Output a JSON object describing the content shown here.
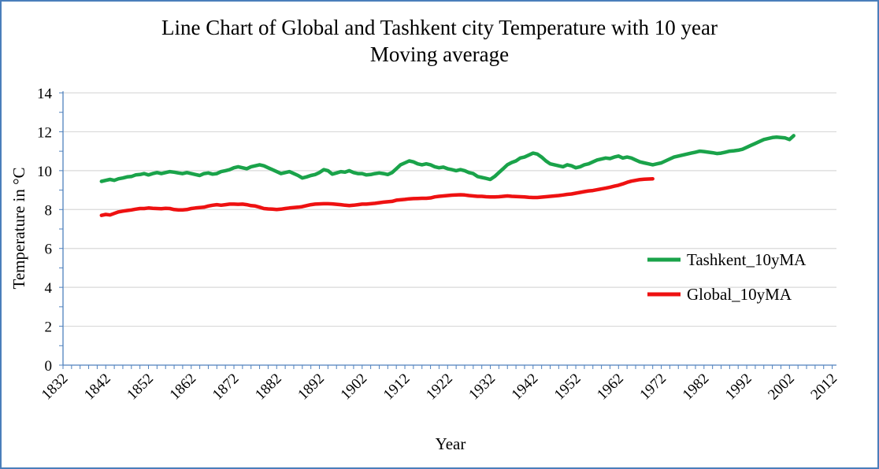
{
  "chart_data": {
    "type": "line",
    "title_line1": "Line Chart of Global and Tashkent city Temperature with 10 year",
    "title_line2": "Moving average",
    "xlabel": "Year",
    "ylabel": "Temperature in °C",
    "xlim": [
      1832,
      2013
    ],
    "ylim": [
      0,
      14
    ],
    "x_ticks": [
      "1832",
      "1842",
      "1852",
      "1862",
      "1872",
      "1882",
      "1892",
      "1902",
      "1912",
      "1922",
      "1932",
      "1942",
      "1952",
      "1962",
      "1972",
      "1982",
      "1992",
      "2002",
      "2012"
    ],
    "y_ticks": [
      "0",
      "2",
      "4",
      "6",
      "8",
      "10",
      "12",
      "14"
    ],
    "grid": "horizontal",
    "legend_position": "right",
    "series": [
      {
        "name": "Tashkent_10yMA",
        "color": "#1aa34a",
        "points": [
          [
            1841,
            9.45
          ],
          [
            1842,
            9.5
          ],
          [
            1843,
            9.55
          ],
          [
            1844,
            9.5
          ],
          [
            1845,
            9.58
          ],
          [
            1846,
            9.62
          ],
          [
            1847,
            9.68
          ],
          [
            1848,
            9.7
          ],
          [
            1849,
            9.78
          ],
          [
            1850,
            9.8
          ],
          [
            1851,
            9.85
          ],
          [
            1852,
            9.78
          ],
          [
            1853,
            9.85
          ],
          [
            1854,
            9.9
          ],
          [
            1855,
            9.85
          ],
          [
            1856,
            9.9
          ],
          [
            1857,
            9.95
          ],
          [
            1858,
            9.92
          ],
          [
            1859,
            9.88
          ],
          [
            1860,
            9.85
          ],
          [
            1861,
            9.9
          ],
          [
            1862,
            9.85
          ],
          [
            1863,
            9.8
          ],
          [
            1864,
            9.75
          ],
          [
            1865,
            9.85
          ],
          [
            1866,
            9.88
          ],
          [
            1867,
            9.82
          ],
          [
            1868,
            9.85
          ],
          [
            1869,
            9.95
          ],
          [
            1870,
            10.0
          ],
          [
            1871,
            10.05
          ],
          [
            1872,
            10.15
          ],
          [
            1873,
            10.2
          ],
          [
            1874,
            10.15
          ],
          [
            1875,
            10.1
          ],
          [
            1876,
            10.2
          ],
          [
            1877,
            10.25
          ],
          [
            1878,
            10.3
          ],
          [
            1879,
            10.25
          ],
          [
            1880,
            10.15
          ],
          [
            1881,
            10.05
          ],
          [
            1882,
            9.95
          ],
          [
            1883,
            9.85
          ],
          [
            1884,
            9.9
          ],
          [
            1885,
            9.95
          ],
          [
            1886,
            9.85
          ],
          [
            1887,
            9.75
          ],
          [
            1888,
            9.62
          ],
          [
            1889,
            9.68
          ],
          [
            1890,
            9.75
          ],
          [
            1891,
            9.8
          ],
          [
            1892,
            9.9
          ],
          [
            1893,
            10.05
          ],
          [
            1894,
            10.0
          ],
          [
            1895,
            9.82
          ],
          [
            1896,
            9.88
          ],
          [
            1897,
            9.95
          ],
          [
            1898,
            9.92
          ],
          [
            1899,
            10.0
          ],
          [
            1900,
            9.9
          ],
          [
            1901,
            9.85
          ],
          [
            1902,
            9.85
          ],
          [
            1903,
            9.78
          ],
          [
            1904,
            9.8
          ],
          [
            1905,
            9.85
          ],
          [
            1906,
            9.88
          ],
          [
            1907,
            9.85
          ],
          [
            1908,
            9.8
          ],
          [
            1909,
            9.9
          ],
          [
            1910,
            10.1
          ],
          [
            1911,
            10.3
          ],
          [
            1912,
            10.4
          ],
          [
            1913,
            10.5
          ],
          [
            1914,
            10.45
          ],
          [
            1915,
            10.35
          ],
          [
            1916,
            10.3
          ],
          [
            1917,
            10.35
          ],
          [
            1918,
            10.3
          ],
          [
            1919,
            10.2
          ],
          [
            1920,
            10.15
          ],
          [
            1921,
            10.18
          ],
          [
            1922,
            10.1
          ],
          [
            1923,
            10.05
          ],
          [
            1924,
            10.0
          ],
          [
            1925,
            10.05
          ],
          [
            1926,
            10.0
          ],
          [
            1927,
            9.9
          ],
          [
            1928,
            9.85
          ],
          [
            1929,
            9.7
          ],
          [
            1930,
            9.65
          ],
          [
            1931,
            9.6
          ],
          [
            1932,
            9.55
          ],
          [
            1933,
            9.7
          ],
          [
            1934,
            9.9
          ],
          [
            1935,
            10.1
          ],
          [
            1936,
            10.3
          ],
          [
            1937,
            10.42
          ],
          [
            1938,
            10.5
          ],
          [
            1939,
            10.65
          ],
          [
            1940,
            10.7
          ],
          [
            1941,
            10.8
          ],
          [
            1942,
            10.9
          ],
          [
            1943,
            10.85
          ],
          [
            1944,
            10.7
          ],
          [
            1945,
            10.5
          ],
          [
            1946,
            10.35
          ],
          [
            1947,
            10.3
          ],
          [
            1948,
            10.25
          ],
          [
            1949,
            10.2
          ],
          [
            1950,
            10.3
          ],
          [
            1951,
            10.25
          ],
          [
            1952,
            10.15
          ],
          [
            1953,
            10.2
          ],
          [
            1954,
            10.3
          ],
          [
            1955,
            10.35
          ],
          [
            1956,
            10.45
          ],
          [
            1957,
            10.55
          ],
          [
            1958,
            10.6
          ],
          [
            1959,
            10.65
          ],
          [
            1960,
            10.62
          ],
          [
            1961,
            10.7
          ],
          [
            1962,
            10.75
          ],
          [
            1963,
            10.65
          ],
          [
            1964,
            10.7
          ],
          [
            1965,
            10.65
          ],
          [
            1966,
            10.55
          ],
          [
            1967,
            10.45
          ],
          [
            1968,
            10.4
          ],
          [
            1969,
            10.35
          ],
          [
            1970,
            10.3
          ],
          [
            1971,
            10.35
          ],
          [
            1972,
            10.4
          ],
          [
            1973,
            10.5
          ],
          [
            1974,
            10.6
          ],
          [
            1975,
            10.7
          ],
          [
            1976,
            10.75
          ],
          [
            1977,
            10.8
          ],
          [
            1978,
            10.85
          ],
          [
            1979,
            10.9
          ],
          [
            1980,
            10.95
          ],
          [
            1981,
            11.0
          ],
          [
            1982,
            10.98
          ],
          [
            1983,
            10.95
          ],
          [
            1984,
            10.92
          ],
          [
            1985,
            10.88
          ],
          [
            1986,
            10.9
          ],
          [
            1987,
            10.95
          ],
          [
            1988,
            11.0
          ],
          [
            1989,
            11.02
          ],
          [
            1990,
            11.05
          ],
          [
            1991,
            11.1
          ],
          [
            1992,
            11.2
          ],
          [
            1993,
            11.3
          ],
          [
            1994,
            11.4
          ],
          [
            1995,
            11.5
          ],
          [
            1996,
            11.6
          ],
          [
            1997,
            11.65
          ],
          [
            1998,
            11.7
          ],
          [
            1999,
            11.72
          ],
          [
            2000,
            11.7
          ],
          [
            2001,
            11.68
          ],
          [
            2002,
            11.6
          ],
          [
            2003,
            11.8
          ]
        ]
      },
      {
        "name": "Global_10yMA",
        "color": "#ee1111",
        "points": [
          [
            1841,
            7.7
          ],
          [
            1842,
            7.75
          ],
          [
            1843,
            7.72
          ],
          [
            1844,
            7.8
          ],
          [
            1845,
            7.88
          ],
          [
            1846,
            7.92
          ],
          [
            1847,
            7.95
          ],
          [
            1848,
            7.98
          ],
          [
            1849,
            8.02
          ],
          [
            1850,
            8.05
          ],
          [
            1851,
            8.05
          ],
          [
            1852,
            8.08
          ],
          [
            1853,
            8.06
          ],
          [
            1854,
            8.05
          ],
          [
            1855,
            8.04
          ],
          [
            1856,
            8.06
          ],
          [
            1857,
            8.05
          ],
          [
            1858,
            8.0
          ],
          [
            1859,
            7.98
          ],
          [
            1860,
            7.98
          ],
          [
            1861,
            8.0
          ],
          [
            1862,
            8.05
          ],
          [
            1863,
            8.08
          ],
          [
            1864,
            8.1
          ],
          [
            1865,
            8.12
          ],
          [
            1866,
            8.18
          ],
          [
            1867,
            8.22
          ],
          [
            1868,
            8.25
          ],
          [
            1869,
            8.22
          ],
          [
            1870,
            8.25
          ],
          [
            1871,
            8.28
          ],
          [
            1872,
            8.28
          ],
          [
            1873,
            8.27
          ],
          [
            1874,
            8.28
          ],
          [
            1875,
            8.25
          ],
          [
            1876,
            8.2
          ],
          [
            1877,
            8.18
          ],
          [
            1878,
            8.12
          ],
          [
            1879,
            8.05
          ],
          [
            1880,
            8.03
          ],
          [
            1881,
            8.02
          ],
          [
            1882,
            8.0
          ],
          [
            1883,
            8.02
          ],
          [
            1884,
            8.05
          ],
          [
            1885,
            8.08
          ],
          [
            1886,
            8.1
          ],
          [
            1887,
            8.12
          ],
          [
            1888,
            8.15
          ],
          [
            1889,
            8.2
          ],
          [
            1890,
            8.25
          ],
          [
            1891,
            8.28
          ],
          [
            1892,
            8.29
          ],
          [
            1893,
            8.3
          ],
          [
            1894,
            8.3
          ],
          [
            1895,
            8.29
          ],
          [
            1896,
            8.27
          ],
          [
            1897,
            8.25
          ],
          [
            1898,
            8.22
          ],
          [
            1899,
            8.2
          ],
          [
            1900,
            8.22
          ],
          [
            1901,
            8.25
          ],
          [
            1902,
            8.28
          ],
          [
            1903,
            8.28
          ],
          [
            1904,
            8.3
          ],
          [
            1905,
            8.32
          ],
          [
            1906,
            8.35
          ],
          [
            1907,
            8.38
          ],
          [
            1908,
            8.4
          ],
          [
            1909,
            8.42
          ],
          [
            1910,
            8.48
          ],
          [
            1911,
            8.5
          ],
          [
            1912,
            8.52
          ],
          [
            1913,
            8.55
          ],
          [
            1914,
            8.56
          ],
          [
            1915,
            8.57
          ],
          [
            1916,
            8.58
          ],
          [
            1917,
            8.58
          ],
          [
            1918,
            8.6
          ],
          [
            1919,
            8.65
          ],
          [
            1920,
            8.68
          ],
          [
            1921,
            8.7
          ],
          [
            1922,
            8.72
          ],
          [
            1923,
            8.74
          ],
          [
            1924,
            8.75
          ],
          [
            1925,
            8.76
          ],
          [
            1926,
            8.75
          ],
          [
            1927,
            8.72
          ],
          [
            1928,
            8.7
          ],
          [
            1929,
            8.68
          ],
          [
            1930,
            8.68
          ],
          [
            1931,
            8.66
          ],
          [
            1932,
            8.65
          ],
          [
            1933,
            8.65
          ],
          [
            1934,
            8.66
          ],
          [
            1935,
            8.68
          ],
          [
            1936,
            8.7
          ],
          [
            1937,
            8.68
          ],
          [
            1938,
            8.67
          ],
          [
            1939,
            8.66
          ],
          [
            1940,
            8.65
          ],
          [
            1941,
            8.63
          ],
          [
            1942,
            8.62
          ],
          [
            1943,
            8.62
          ],
          [
            1944,
            8.64
          ],
          [
            1945,
            8.66
          ],
          [
            1946,
            8.68
          ],
          [
            1947,
            8.7
          ],
          [
            1948,
            8.72
          ],
          [
            1949,
            8.75
          ],
          [
            1950,
            8.78
          ],
          [
            1951,
            8.8
          ],
          [
            1952,
            8.84
          ],
          [
            1953,
            8.88
          ],
          [
            1954,
            8.92
          ],
          [
            1955,
            8.96
          ],
          [
            1956,
            8.98
          ],
          [
            1957,
            9.02
          ],
          [
            1958,
            9.06
          ],
          [
            1959,
            9.1
          ],
          [
            1960,
            9.15
          ],
          [
            1961,
            9.2
          ],
          [
            1962,
            9.25
          ],
          [
            1963,
            9.32
          ],
          [
            1964,
            9.4
          ],
          [
            1965,
            9.46
          ],
          [
            1966,
            9.5
          ],
          [
            1967,
            9.54
          ],
          [
            1968,
            9.56
          ],
          [
            1969,
            9.57
          ],
          [
            1970,
            9.58
          ]
        ]
      }
    ]
  }
}
